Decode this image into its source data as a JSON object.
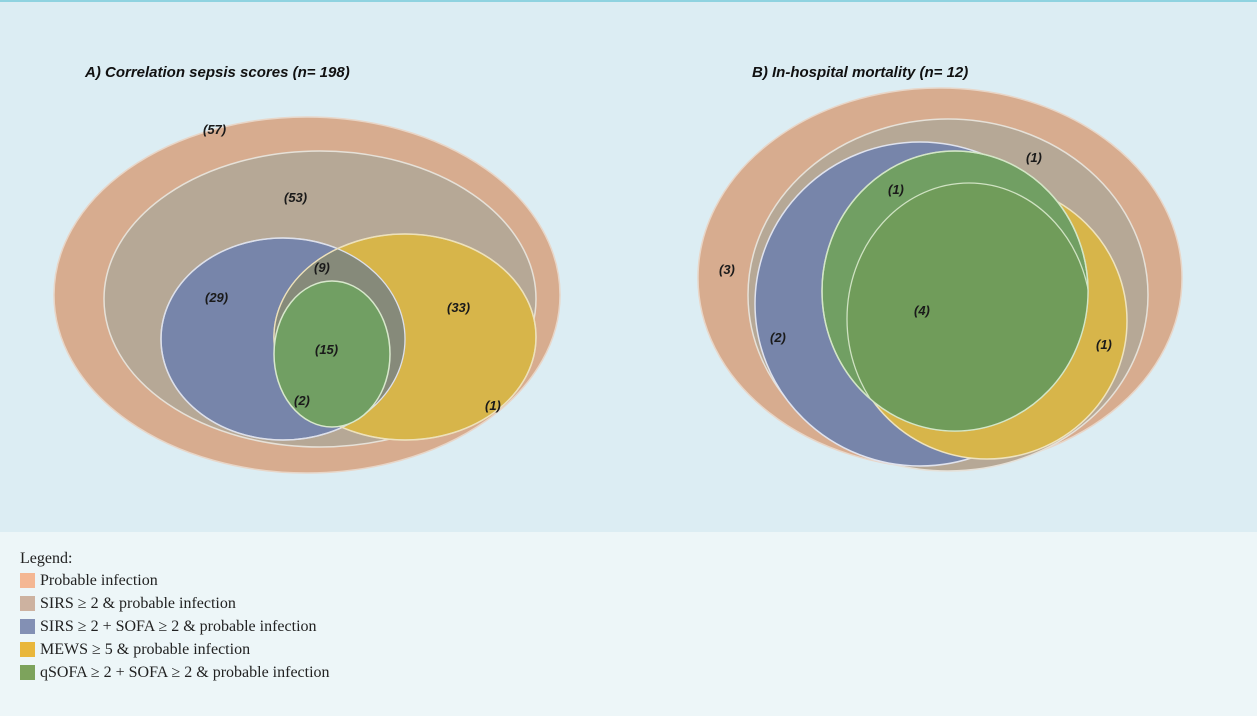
{
  "panel_a": {
    "title": "A) Correlation sepsis scores (n= 198)",
    "counts": {
      "probable_only": "(57)",
      "sirs_only": "(53)",
      "sirs_sofa_only": "(29)",
      "sirs_sofa_mews": "(9)",
      "mews_only": "(33)",
      "all_three": "(15)",
      "sirs_sofa_qsofa": "(2)",
      "mews_outside": "(1)"
    }
  },
  "panel_b": {
    "title": "B) In-hospital mortality (n= 12)",
    "counts": {
      "probable_only": "(3)",
      "sirs_only": "(1)",
      "sirs_sofa_qsofa": "(1)",
      "sirs_sofa_only": "(2)",
      "all": "(4)",
      "mews_only": "(1)"
    }
  },
  "legend": {
    "title": "Legend:",
    "items": [
      {
        "label": "Probable infection",
        "color": "#f4b793"
      },
      {
        "label": "SIRS ≥ 2 & probable infection",
        "color": "#cdb2a0"
      },
      {
        "label": "SIRS ≥ 2 + SOFA ≥ 2 & probable infection",
        "color": "#8390b4"
      },
      {
        "label": "MEWS ≥ 5 & probable infection",
        "color": "#e9b73c"
      },
      {
        "label": "qSOFA ≥ 2 + SOFA ≥ 2 & probable infection",
        "color": "#7da35c"
      }
    ]
  },
  "colors": {
    "probable": "#d7ac8f",
    "sirs": "#b6a896",
    "sirs_sofa": "#7785aa",
    "mews": "#d7b54a",
    "qsofa": "#719f63",
    "background": "#dcedf3"
  }
}
